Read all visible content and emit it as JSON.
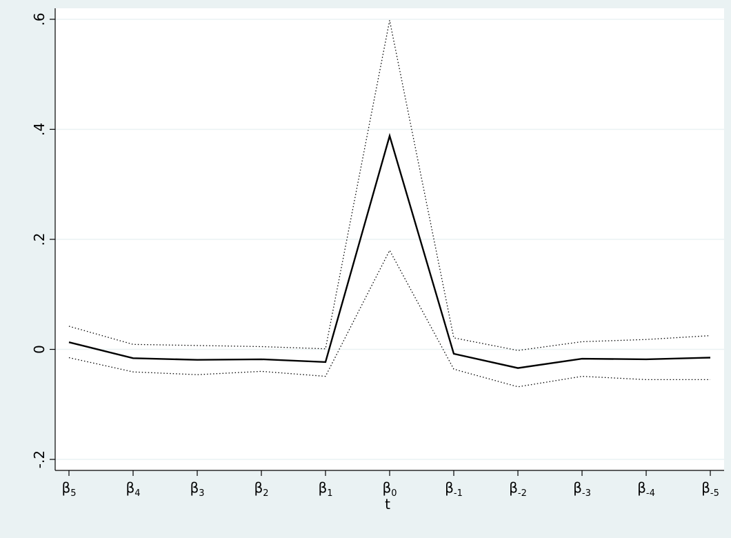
{
  "chart_data": {
    "type": "line",
    "xlabel": "t",
    "ylabel": "",
    "title": "",
    "ylim": [
      -0.22,
      0.62
    ],
    "yticks": [
      -0.2,
      0,
      0.2,
      0.4,
      0.6
    ],
    "ytick_labels": [
      "-.2",
      "0",
      ".2",
      ".4",
      ".6"
    ],
    "categories": [
      {
        "base": "β",
        "sub": "5"
      },
      {
        "base": "β",
        "sub": "4"
      },
      {
        "base": "β",
        "sub": "3"
      },
      {
        "base": "β",
        "sub": "2"
      },
      {
        "base": "β",
        "sub": "1"
      },
      {
        "base": "β",
        "sub": "0"
      },
      {
        "base": "β",
        "sub": "-1"
      },
      {
        "base": "β",
        "sub": "-2"
      },
      {
        "base": "β",
        "sub": "-3"
      },
      {
        "base": "β",
        "sub": "-4"
      },
      {
        "base": "β",
        "sub": "-5"
      }
    ],
    "series": [
      {
        "role": "estimate",
        "style": "solid",
        "color": "#000000",
        "values": [
          0.013,
          -0.016,
          -0.019,
          -0.018,
          -0.023,
          0.388,
          -0.008,
          -0.034,
          -0.017,
          -0.018,
          -0.015
        ]
      },
      {
        "role": "upper",
        "style": "dotted",
        "color": "#000000",
        "values": [
          0.042,
          0.009,
          0.007,
          0.005,
          0.001,
          0.598,
          0.021,
          -0.002,
          0.014,
          0.018,
          0.025
        ]
      },
      {
        "role": "lower",
        "style": "dotted",
        "color": "#000000",
        "values": [
          -0.015,
          -0.041,
          -0.046,
          -0.04,
          -0.049,
          0.18,
          -0.036,
          -0.068,
          -0.049,
          -0.055,
          -0.055
        ]
      }
    ],
    "grid": true,
    "legend": "none"
  }
}
